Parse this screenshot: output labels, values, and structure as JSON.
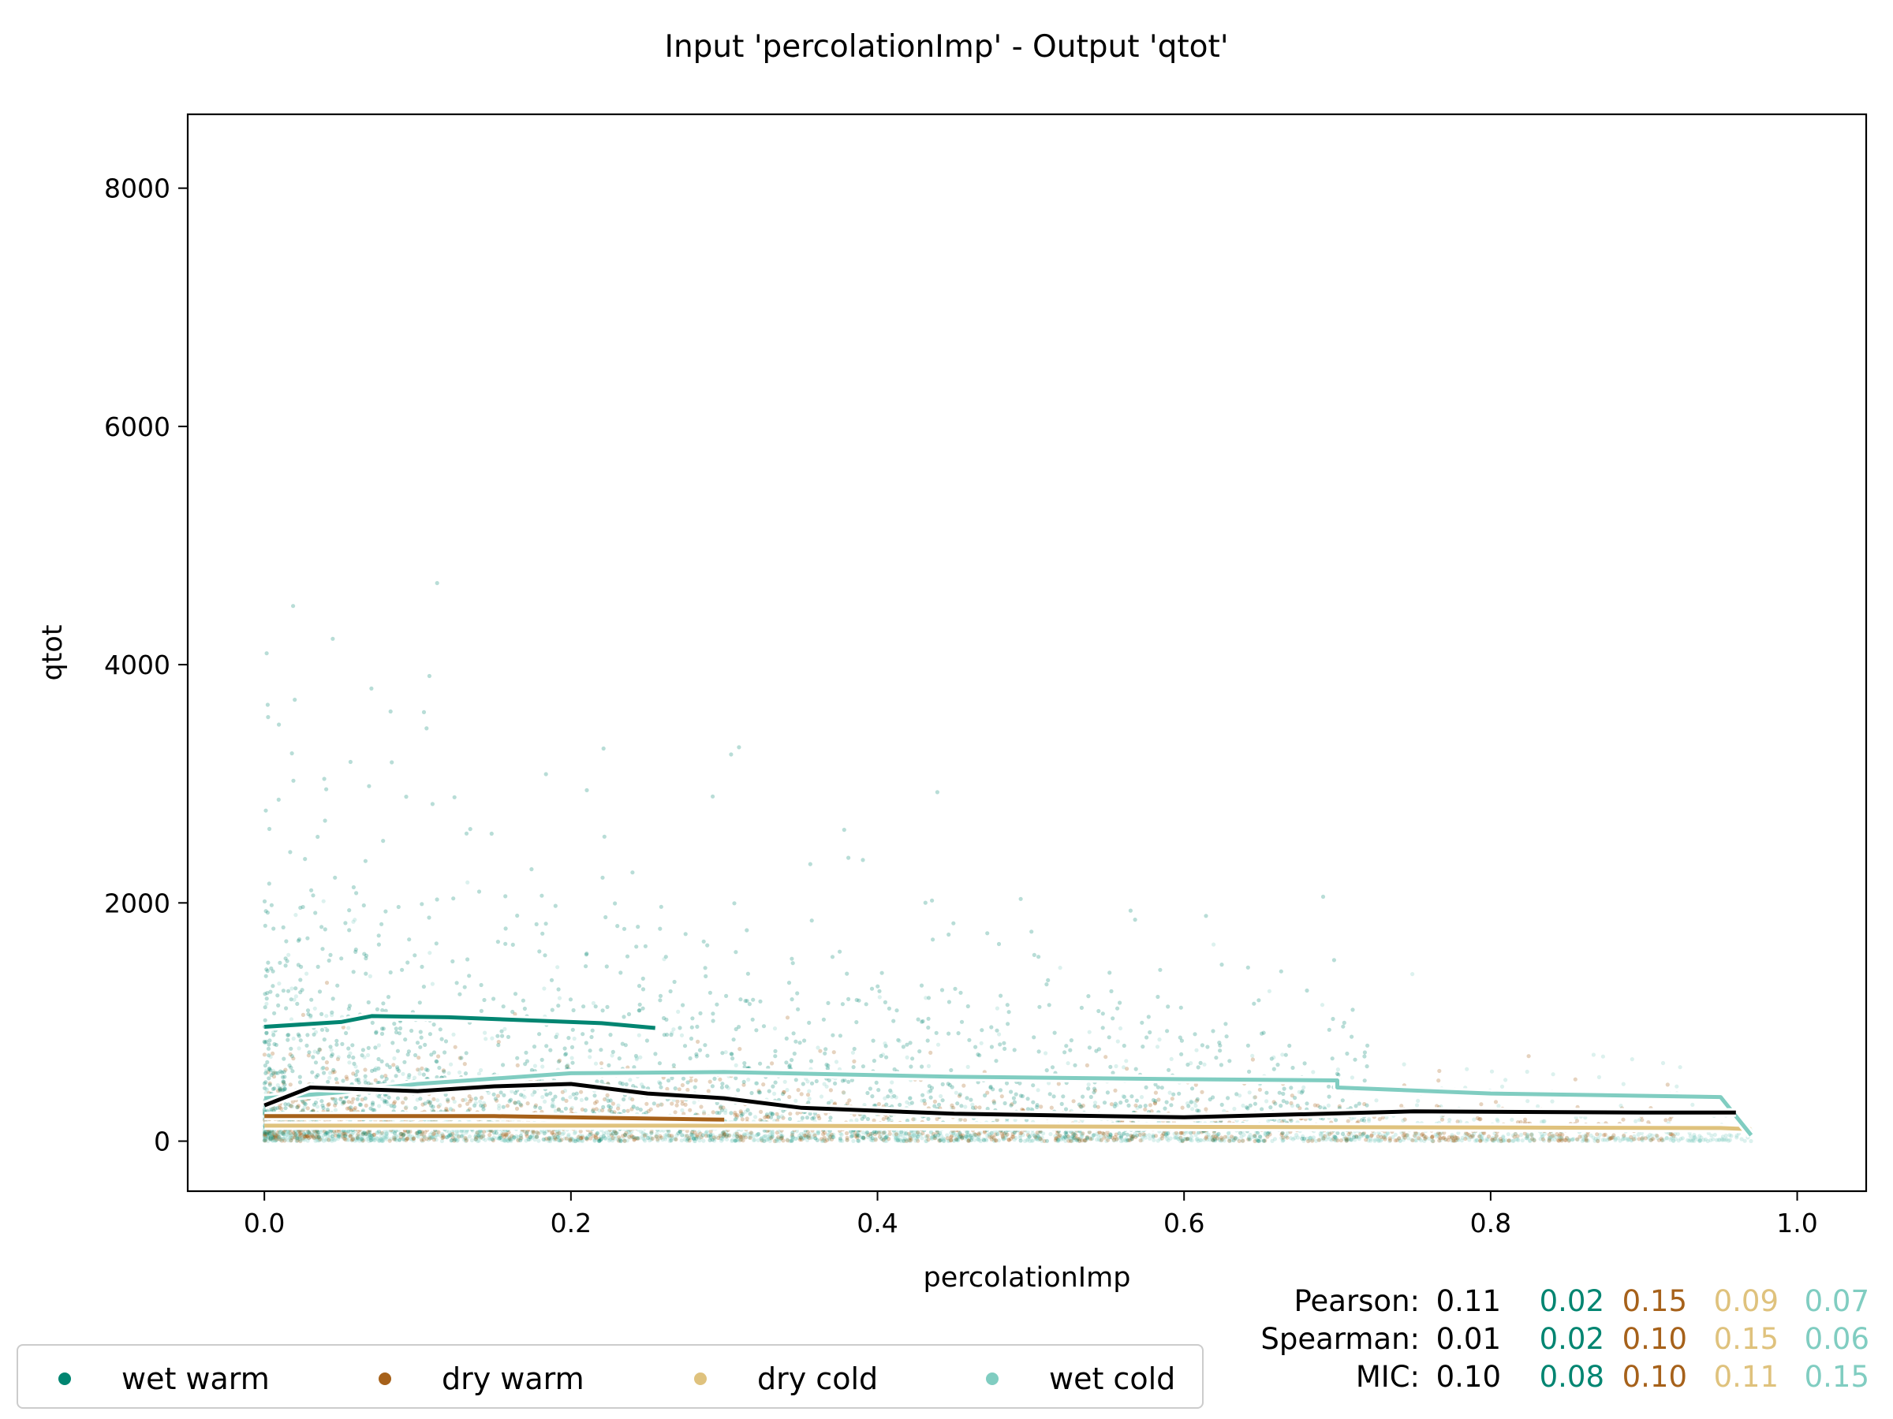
{
  "chart_data": {
    "type": "scatter",
    "title": "Input 'percolationImp' - Output 'qtot'",
    "xlabel": "percolationImp",
    "ylabel": "qtot",
    "xlim": [
      -0.05,
      1.045
    ],
    "ylim": [
      -420,
      8620
    ],
    "xticks": [
      0.0,
      0.2,
      0.4,
      0.6,
      0.8,
      1.0
    ],
    "xtick_labels": [
      "0.0",
      "0.2",
      "0.4",
      "0.6",
      "0.8",
      "1.0"
    ],
    "yticks": [
      0,
      2000,
      4000,
      6000,
      8000
    ],
    "ytick_labels": [
      "0",
      "2000",
      "4000",
      "6000",
      "8000"
    ],
    "grid": false,
    "legend_position": "bottom-left, below plot",
    "series": [
      {
        "name": "wet warm",
        "color": "#018571",
        "trend": [
          [
            0.0,
            960
          ],
          [
            0.05,
            1000
          ],
          [
            0.07,
            1050
          ],
          [
            0.12,
            1040
          ],
          [
            0.18,
            1010
          ],
          [
            0.22,
            990
          ],
          [
            0.255,
            950
          ]
        ]
      },
      {
        "name": "dry warm",
        "color": "#a6611a",
        "trend": [
          [
            0.0,
            210
          ],
          [
            0.15,
            210
          ],
          [
            0.3,
            180
          ]
        ]
      },
      {
        "name": "dry cold",
        "color": "#dfc27d",
        "trend": [
          [
            0.0,
            130
          ],
          [
            0.3,
            130
          ],
          [
            0.6,
            120
          ],
          [
            0.95,
            110
          ],
          [
            0.97,
            100
          ]
        ]
      },
      {
        "name": "wet cold",
        "color": "#80cdc1",
        "trend": [
          [
            0.0,
            360
          ],
          [
            0.05,
            410
          ],
          [
            0.1,
            480
          ],
          [
            0.2,
            570
          ],
          [
            0.3,
            580
          ],
          [
            0.45,
            540
          ],
          [
            0.6,
            520
          ],
          [
            0.7,
            510
          ],
          [
            0.7,
            450
          ],
          [
            0.8,
            400
          ],
          [
            0.95,
            370
          ],
          [
            0.97,
            50
          ]
        ]
      }
    ],
    "overall_trend": {
      "color": "#000000",
      "points": [
        [
          0.0,
          300
        ],
        [
          0.03,
          450
        ],
        [
          0.1,
          420
        ],
        [
          0.15,
          460
        ],
        [
          0.2,
          480
        ],
        [
          0.25,
          400
        ],
        [
          0.3,
          360
        ],
        [
          0.35,
          280
        ],
        [
          0.45,
          230
        ],
        [
          0.6,
          200
        ],
        [
          0.75,
          250
        ],
        [
          0.9,
          240
        ],
        [
          0.96,
          240
        ]
      ]
    },
    "stats": {
      "rows": [
        {
          "label": "Pearson:",
          "overall": "0.11",
          "values": [
            "0.02",
            "0.15",
            "0.09",
            "0.07"
          ]
        },
        {
          "label": "Spearman:",
          "overall": "0.01",
          "values": [
            "0.02",
            "0.10",
            "0.15",
            "0.06"
          ]
        },
        {
          "label": "MIC:",
          "overall": "0.10",
          "values": [
            "0.08",
            "0.10",
            "0.11",
            "0.15"
          ]
        }
      ]
    }
  }
}
